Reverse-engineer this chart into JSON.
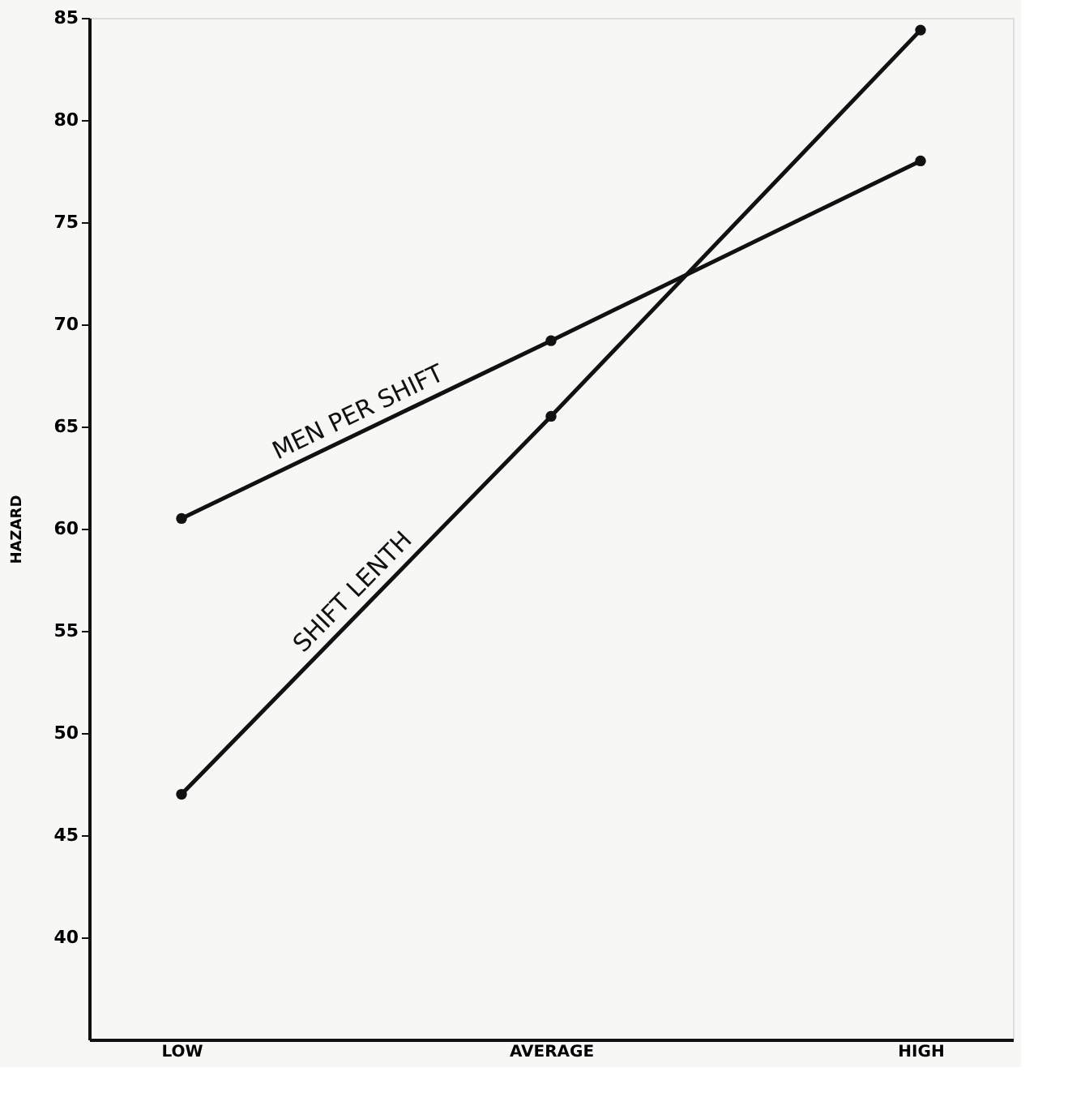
{
  "chart_data": {
    "type": "line",
    "ylabel": "HAZARD",
    "categories": [
      "LOW",
      "AVERAGE",
      "HIGH"
    ],
    "series": [
      {
        "name": "MEN PER SHIFT",
        "color": "#111111",
        "values": [
          60.5,
          69.2,
          78
        ]
      },
      {
        "name": "SHIFT LENTH",
        "color": "#111111",
        "values": [
          47,
          65.5,
          84.4
        ]
      }
    ],
    "ylim": [
      35,
      85
    ],
    "yticks": [
      40,
      45,
      50,
      55,
      60,
      65,
      70,
      75,
      80,
      85
    ],
    "grid": false,
    "legend": false,
    "marker": "circle",
    "line_style": "solid"
  }
}
